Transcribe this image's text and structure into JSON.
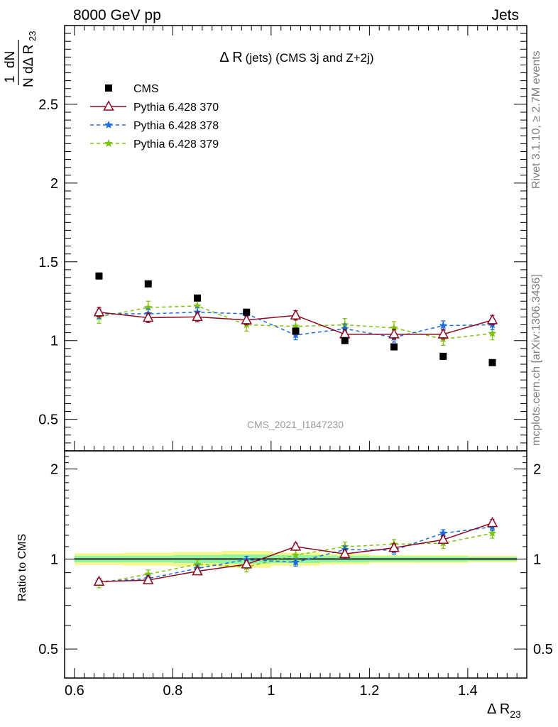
{
  "header": {
    "left": "8000 GeV pp",
    "right": "Jets"
  },
  "side_labels": {
    "rivet": "Rivet 3.1.10, ≥ 2.7M events",
    "mcplots": "mcplots.cern.ch [arXiv:1306.3436]"
  },
  "chart_data": {
    "type": "scatter",
    "title": "Δ R (jets) (CMS 3j and Z+2j)",
    "analysis_tag": "CMS_2021_I1847230",
    "xlabel": "Δ R",
    "xlabel_sub": "23",
    "ylabel_frac": "1 dN / N dΔ R",
    "ylabel_sub": "23",
    "ratio_ylabel": "Ratio to CMS",
    "xlim": [
      0.58,
      1.52
    ],
    "ylim_main": [
      0.3,
      3.0
    ],
    "ylim_ratio": [
      0.4,
      2.3
    ],
    "x_ticks": [
      "0.6",
      "0.8",
      "1",
      "1.2",
      "1.4"
    ],
    "y_ticks_main": [
      "0.5",
      "1",
      "1.5",
      "2",
      "2.5"
    ],
    "y_ticks_ratio": [
      "0.5",
      "1",
      "2"
    ],
    "legend_position": "top-left",
    "x": [
      0.65,
      0.75,
      0.85,
      0.95,
      1.05,
      1.15,
      1.25,
      1.35,
      1.45
    ],
    "series": [
      {
        "name": "CMS",
        "color": "#000000",
        "marker": "square",
        "values": [
          1.41,
          1.36,
          1.27,
          1.18,
          1.06,
          1.0,
          0.96,
          0.9,
          0.86
        ]
      },
      {
        "name": "Pythia 6.428 370",
        "color": "#8b0a22",
        "marker": "open-triangle",
        "line": "solid",
        "values": [
          1.18,
          1.145,
          1.15,
          1.13,
          1.16,
          1.04,
          1.04,
          1.04,
          1.13
        ],
        "errors": [
          0.03,
          0.03,
          0.03,
          0.03,
          0.03,
          0.03,
          0.03,
          0.03,
          0.03
        ],
        "ratio": [
          0.84,
          0.85,
          0.91,
          0.96,
          1.1,
          1.04,
          1.09,
          1.16,
          1.32
        ]
      },
      {
        "name": "Pythia 6.428 378",
        "color": "#1a6de0",
        "marker": "star",
        "line": "dashed",
        "values": [
          1.17,
          1.17,
          1.18,
          1.17,
          1.035,
          1.075,
          1.02,
          1.095,
          1.1
        ],
        "errors": [
          0.03,
          0.03,
          0.03,
          0.03,
          0.03,
          0.03,
          0.03,
          0.03,
          0.03
        ],
        "ratio": [
          0.84,
          0.86,
          0.93,
          0.995,
          0.975,
          1.075,
          1.07,
          1.22,
          1.28
        ]
      },
      {
        "name": "Pythia 6.428 379",
        "color": "#7ec212",
        "marker": "star",
        "line": "dashed",
        "values": [
          1.15,
          1.21,
          1.22,
          1.1,
          1.09,
          1.1,
          1.08,
          1.01,
          1.045
        ],
        "errors": [
          0.04,
          0.04,
          0.04,
          0.04,
          0.04,
          0.04,
          0.04,
          0.04,
          0.04
        ],
        "ratio": [
          0.83,
          0.89,
          0.96,
          0.94,
          1.03,
          1.1,
          1.12,
          1.13,
          1.22
        ]
      }
    ],
    "ratio_bands": {
      "outer_color": "#f6f78a",
      "inner_color": "#8ff5a4",
      "outer_halfwidth": [
        0.045,
        0.05,
        0.055,
        0.065,
        0.05,
        0.04,
        0.03,
        0.03,
        0.025
      ],
      "inner_halfwidth": [
        0.025,
        0.025,
        0.03,
        0.035,
        0.03,
        0.025,
        0.02,
        0.02,
        0.015
      ]
    }
  }
}
